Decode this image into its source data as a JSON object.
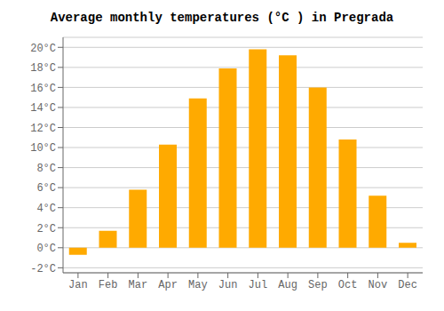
{
  "chart_data": {
    "type": "bar",
    "title": "Average monthly temperatures (°C ) in Pregrada",
    "categories": [
      "Jan",
      "Feb",
      "Mar",
      "Apr",
      "May",
      "Jun",
      "Jul",
      "Aug",
      "Sep",
      "Oct",
      "Nov",
      "Dec"
    ],
    "values": [
      -0.7,
      1.7,
      5.8,
      10.3,
      14.9,
      17.9,
      19.8,
      19.2,
      16.0,
      10.8,
      5.2,
      0.5
    ],
    "color": "#FFAA00",
    "ylim": [
      -2.5,
      21.0
    ],
    "yticks": [
      {
        "value": -2,
        "label": "-2°C"
      },
      {
        "value": 0,
        "label": "0°C"
      },
      {
        "value": 2,
        "label": "2°C"
      },
      {
        "value": 4,
        "label": "4°C"
      },
      {
        "value": 6,
        "label": "6°C"
      },
      {
        "value": 8,
        "label": "8°C"
      },
      {
        "value": 10,
        "label": "10°C"
      },
      {
        "value": 12,
        "label": "12°C"
      },
      {
        "value": 14,
        "label": "14°C"
      },
      {
        "value": 16,
        "label": "16°C"
      },
      {
        "value": 18,
        "label": "18°C"
      },
      {
        "value": 20,
        "label": "20°C"
      }
    ],
    "grid": true
  }
}
